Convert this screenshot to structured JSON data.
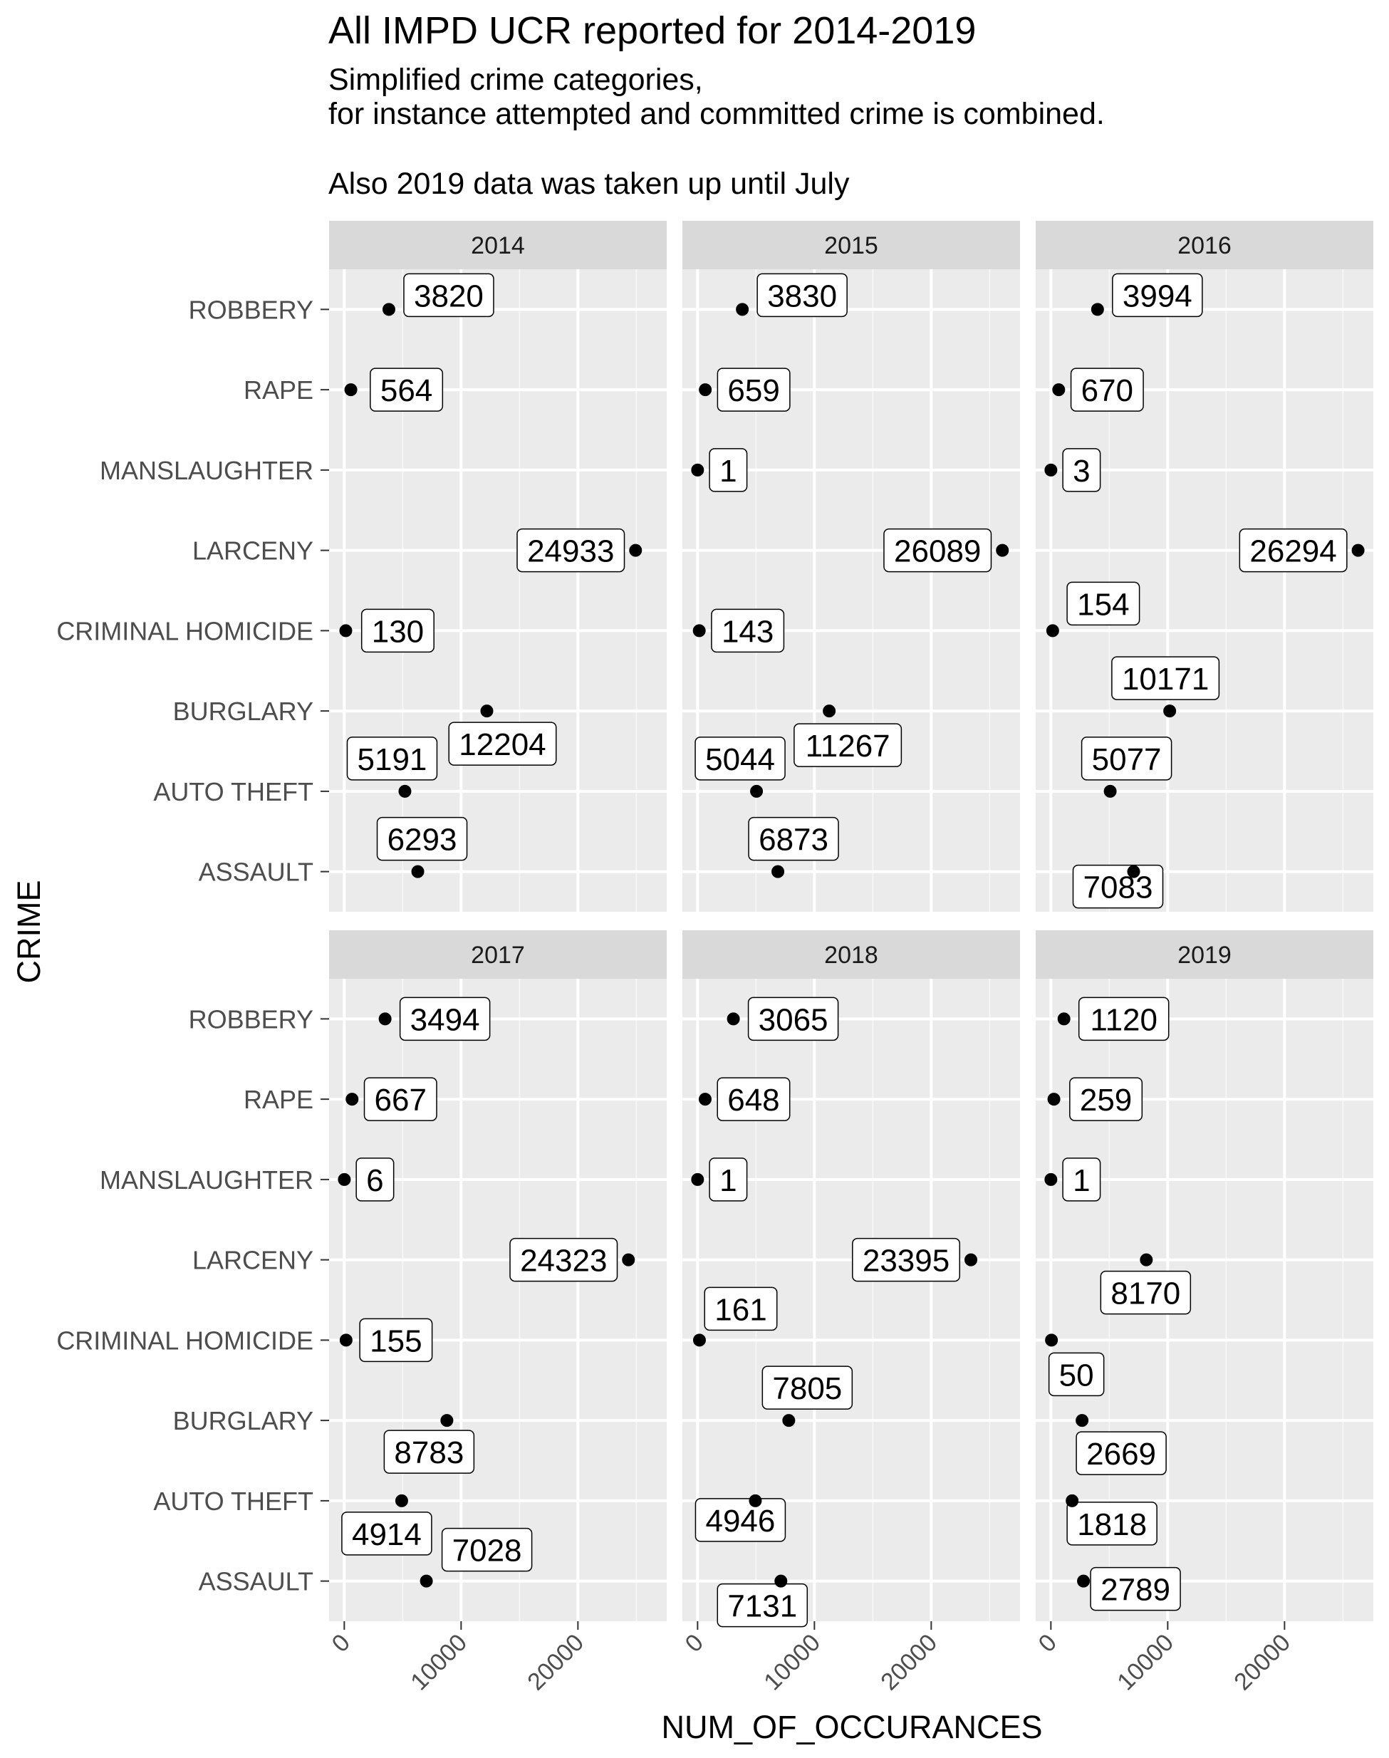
{
  "chart_data": {
    "type": "scatter",
    "title": "All IMPD UCR reported for 2014-2019",
    "subtitle_lines": [
      "Simplified crime categories,",
      "for instance attempted and committed crime is combined.",
      "Also 2019 data was taken up until July"
    ],
    "xlabel": "NUM_OF_OCCURANCES",
    "ylabel": "CRIME",
    "xlim": [
      -1300,
      27600
    ],
    "x_ticks": [
      "0",
      "10000",
      "20000"
    ],
    "x_tick_values": [
      0,
      10000,
      20000
    ],
    "grid": true,
    "categories": [
      "ROBBERY",
      "RAPE",
      "MANSLAUGHTER",
      "LARCENY",
      "CRIMINAL HOMICIDE",
      "BURGLARY",
      "AUTO THEFT",
      "ASSAULT"
    ],
    "facets": [
      {
        "name": "2014",
        "values": [
          3820,
          564,
          null,
          24933,
          130,
          12204,
          5191,
          6293
        ]
      },
      {
        "name": "2015",
        "values": [
          3830,
          659,
          1,
          26089,
          143,
          11267,
          5044,
          6873
        ]
      },
      {
        "name": "2016",
        "values": [
          3994,
          670,
          3,
          26294,
          154,
          10171,
          5077,
          7083
        ]
      },
      {
        "name": "2017",
        "values": [
          3494,
          667,
          6,
          24323,
          155,
          8783,
          4914,
          7028
        ]
      },
      {
        "name": "2018",
        "values": [
          3065,
          648,
          1,
          23395,
          161,
          7805,
          4946,
          7131
        ]
      },
      {
        "name": "2019",
        "values": [
          1120,
          259,
          1,
          8170,
          50,
          2669,
          1818,
          2789
        ]
      }
    ]
  }
}
